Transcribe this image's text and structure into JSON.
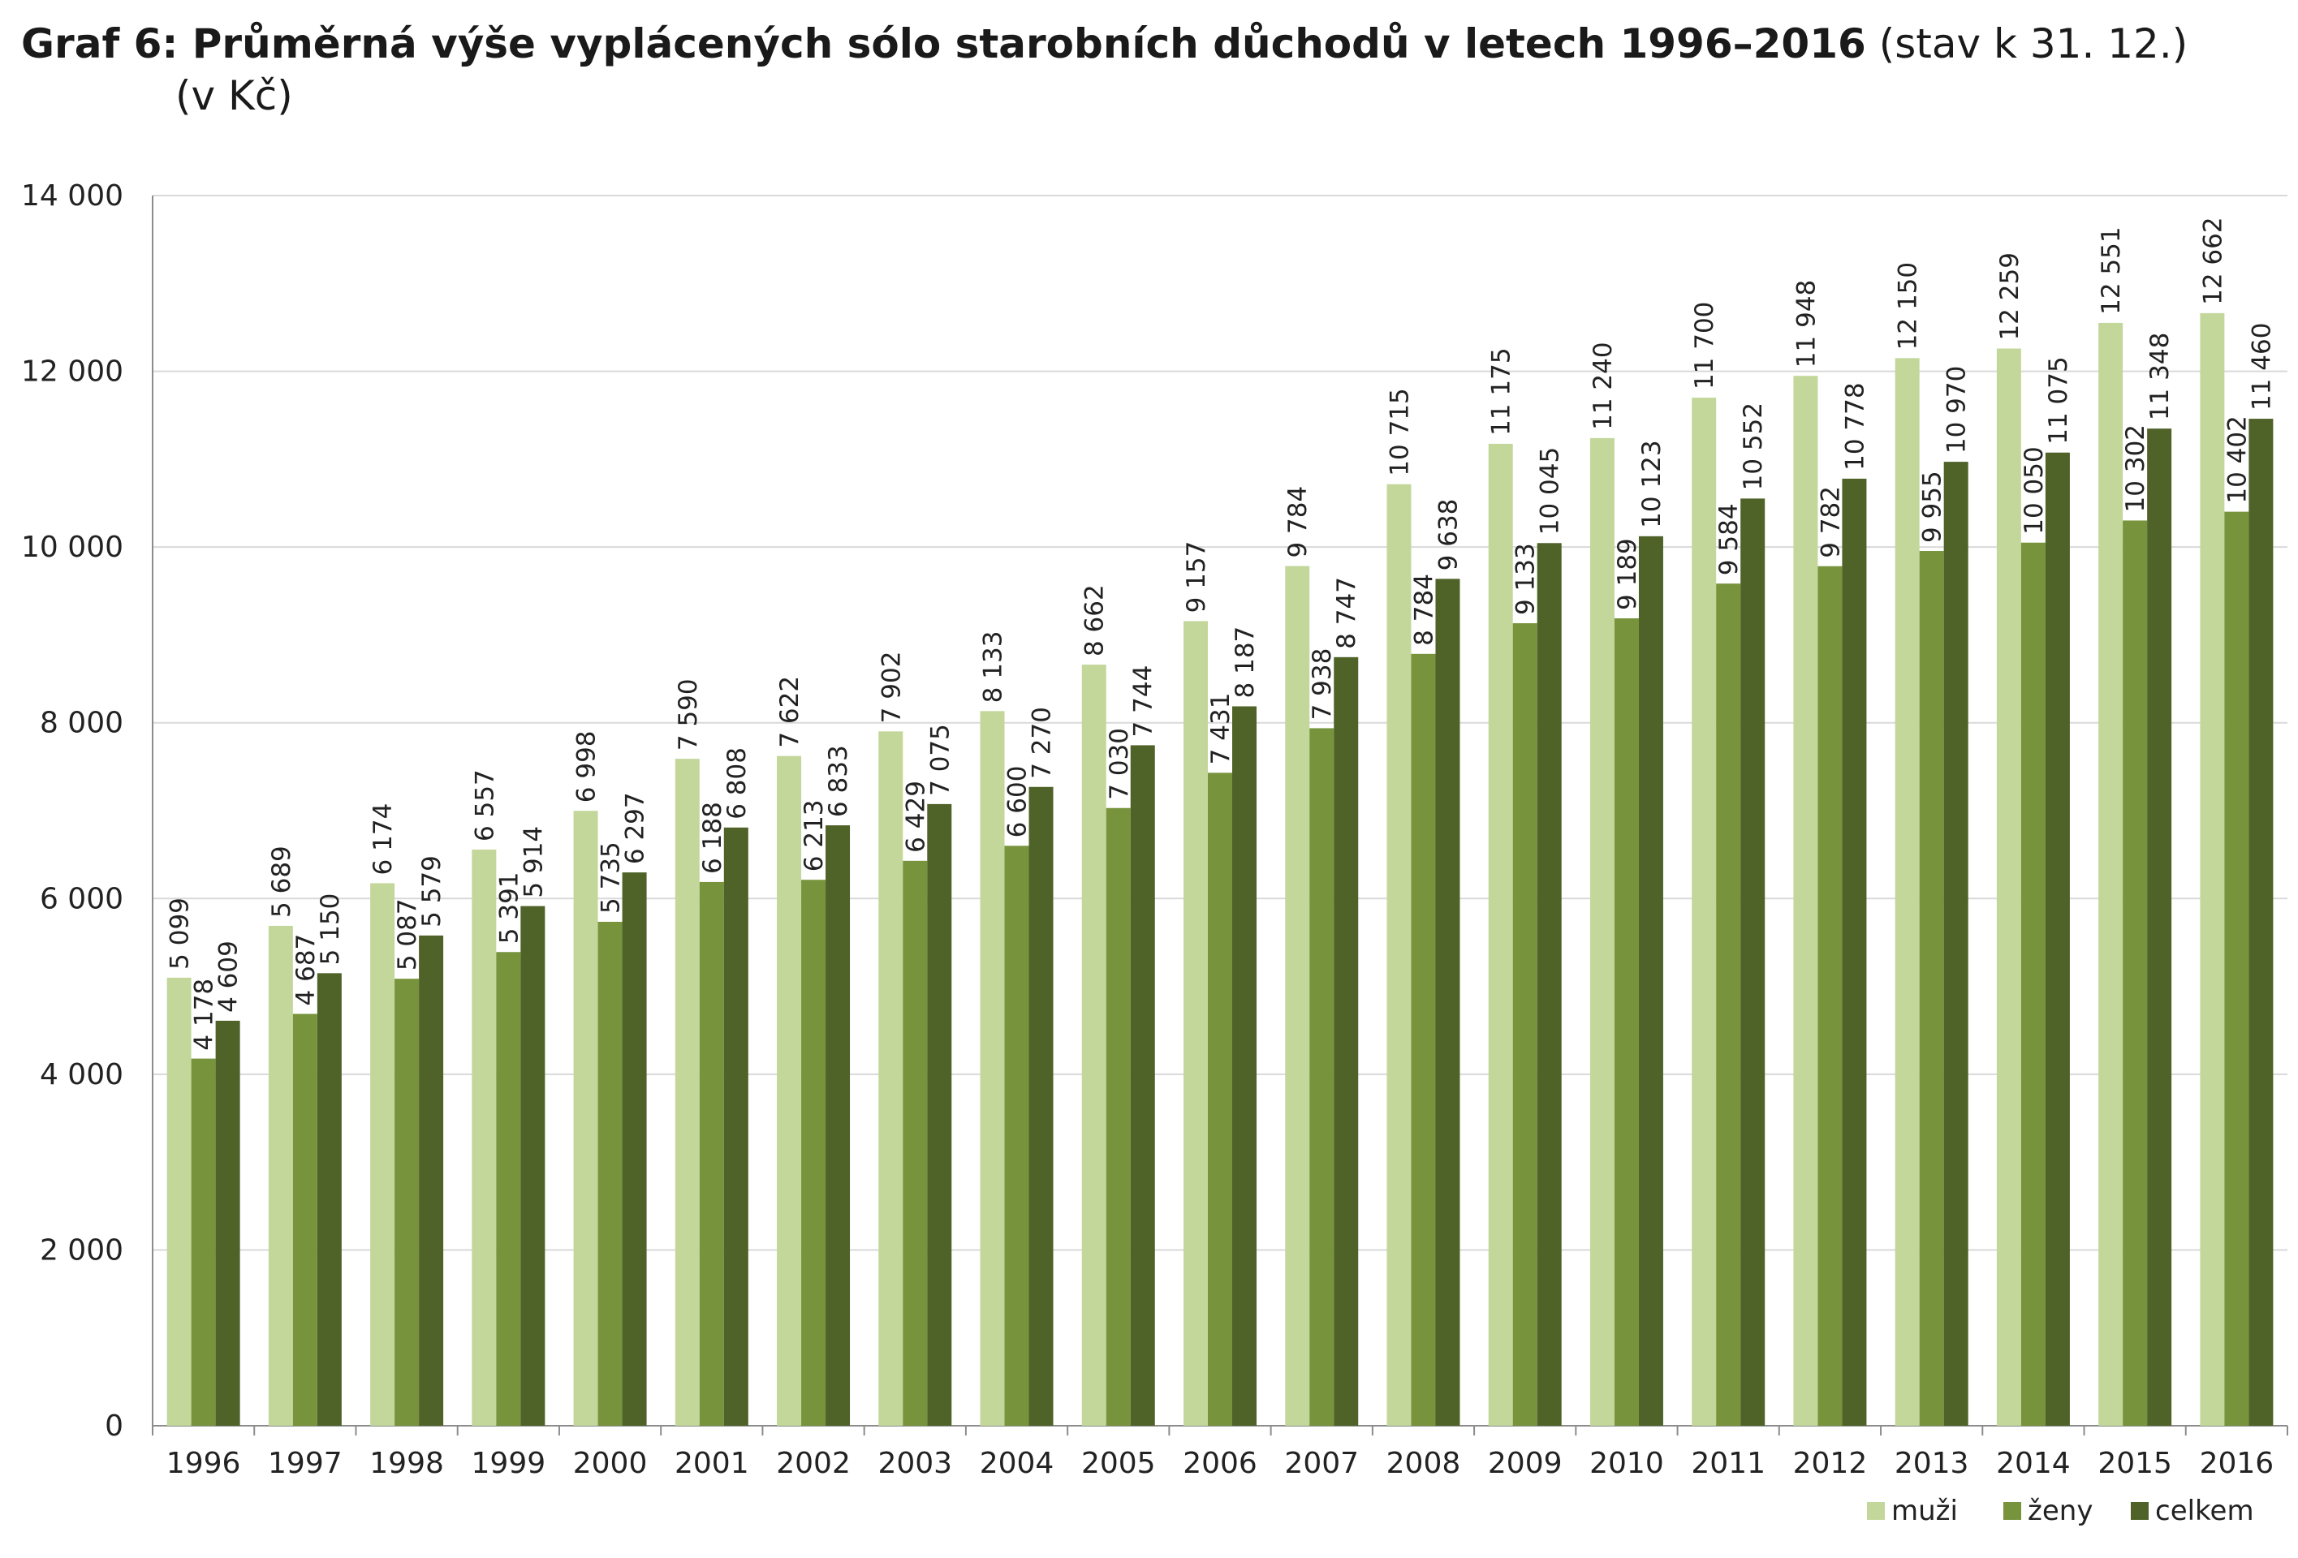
{
  "title": {
    "main": "Graf 6: Průměrná výše vyplácených sólo starobních důchodů v letech 1996–2016",
    "note": "(stav k 31. 12.)",
    "unit": "(v Kč)"
  },
  "chart_data": {
    "type": "bar",
    "title": "Graf 6: Průměrná výše vyplácených sólo starobních důchodů v letech 1996–2016 (stav k 31. 12.)",
    "ylabel": "(v Kč)",
    "ylim": [
      0,
      14000
    ],
    "yticks": [
      0,
      2000,
      4000,
      6000,
      8000,
      10000,
      12000,
      14000
    ],
    "ytick_labels": [
      "0",
      "2 000",
      "4 000",
      "6 000",
      "8 000",
      "10 000",
      "12 000",
      "14 000"
    ],
    "grid": true,
    "legend_position": "bottom-right",
    "categories": [
      "1996",
      "1997",
      "1998",
      "1999",
      "2000",
      "2001",
      "2002",
      "2003",
      "2004",
      "2005",
      "2006",
      "2007",
      "2008",
      "2009",
      "2010",
      "2011",
      "2012",
      "2013",
      "2014",
      "2015",
      "2016"
    ],
    "series": [
      {
        "name": "muži",
        "color": "#c4d79b",
        "values": [
          5099,
          5689,
          6174,
          6557,
          6998,
          7590,
          7622,
          7902,
          8133,
          8662,
          9157,
          9784,
          10715,
          11175,
          11240,
          11700,
          11948,
          12150,
          12259,
          12551,
          12662
        ]
      },
      {
        "name": "ženy",
        "color": "#77933c",
        "values": [
          4178,
          4687,
          5087,
          5391,
          5735,
          6188,
          6213,
          6429,
          6600,
          7030,
          7431,
          7938,
          8784,
          9133,
          9189,
          9584,
          9782,
          9955,
          10050,
          10302,
          10402
        ]
      },
      {
        "name": "celkem",
        "color": "#4f6228",
        "values": [
          4609,
          5150,
          5579,
          5914,
          6297,
          6808,
          6833,
          7075,
          7270,
          7744,
          8187,
          8747,
          9638,
          10045,
          10123,
          10552,
          10778,
          10970,
          11075,
          11348,
          11460
        ]
      }
    ]
  }
}
